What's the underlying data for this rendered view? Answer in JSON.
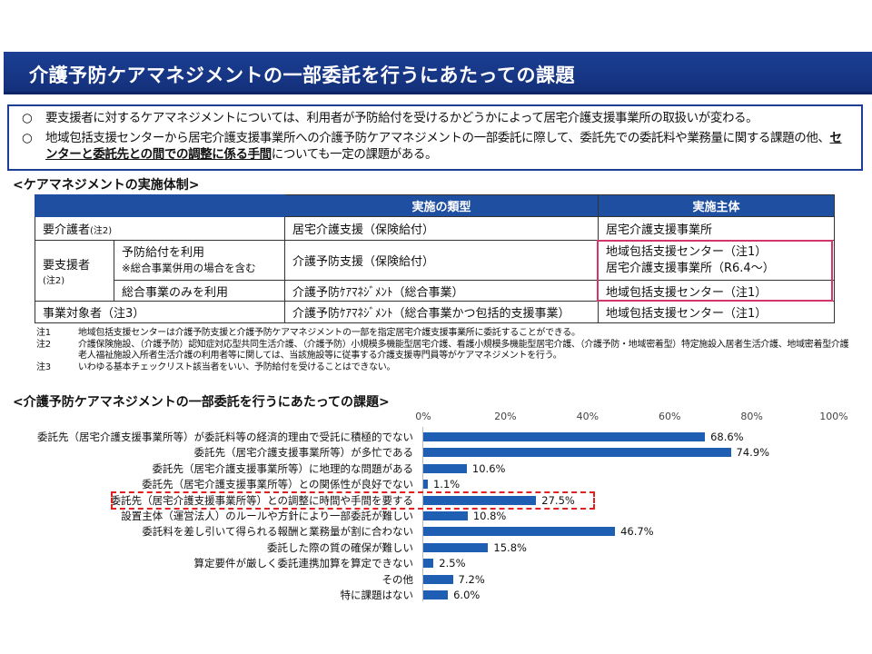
{
  "title": "介護予防ケアマネジメントの一部委託を行うにあたっての課題",
  "summary": {
    "bullet_mark": "○",
    "b1": "要支援者に対するケアマネジメントについては、利用者が予防給付を受けるかどうかによって居宅介護支援事業所の取扱いが変わる。",
    "b2_pre": "地域包括支援センターから居宅介護支援事業所への介護予防ケアマネジメントの一部委託に際して、委託先での委託料や業務量に関する課題の他、",
    "b2_emph": "センターと委託先との間での調整に係る手間",
    "b2_post": "についても一定の課題がある。"
  },
  "table_section": "<ケアマネジメントの実施体制>",
  "table": {
    "headers": [
      "実施の類型",
      "実施主体"
    ],
    "r1": {
      "label": "要介護者",
      "note": "(注2)",
      "type": "居宅介護支援（保険給付）",
      "agent": "居宅介護支援事業所"
    },
    "r2": {
      "label": "要支援者",
      "note": "(注2)",
      "sub1": "予防給付を利用",
      "sub1b": "※総合事業併用の場合を含む",
      "type": "介護予防支援（保険給付）",
      "agent1": "地域包括支援センター（注1）",
      "agent2": "居宅介護支援事業所（R6.4～）"
    },
    "r3": {
      "sub": "総合事業のみを利用",
      "type": "介護予防ｹｱﾏﾈｼﾞﾒﾝﾄ（総合事業）",
      "agent": "地域包括支援センター（注1）"
    },
    "r4": {
      "label": "事業対象者（注3）",
      "type": "介護予防ｹｱﾏﾈｼﾞﾒﾝﾄ（総合事業かつ包括的支援事業）",
      "agent": "地域包括支援センター（注1）"
    }
  },
  "notes": [
    {
      "n": "注1",
      "t": "地域包括支援センターは介護予防支援と介護予防ケアマネジメントの一部を指定居宅介護支援事業所に委託することができる。"
    },
    {
      "n": "注2",
      "t": "介護保険施設、（介護予防）認知症対応型共同生活介護、（介護予防）小規模多機能型居宅介護、看護小規模多機能型居宅介護、（介護予防・地域密着型）特定施設入居者生活介護、地域密着型介護老人福祉施設入所者生活介護の利用者等に関しては、当該施設等に従事する介護支援専門員等がケアマネジメントを行う。"
    },
    {
      "n": "注3",
      "t": "いわゆる基本チェックリスト該当者をいい、予防給付を受けることはできない。"
    }
  ],
  "chart_data": {
    "type": "bar",
    "orientation": "horizontal",
    "title": "<介護予防ケアマネジメントの一部委託を行うにあたっての課題>",
    "xlim": [
      0,
      100
    ],
    "ticks": [
      "0%",
      "20%",
      "40%",
      "60%",
      "80%",
      "100%"
    ],
    "categories": [
      "委託先（居宅介護支援事業所等）が委託料等の経済的理由で受託に積極的でない",
      "委託先（居宅介護支援事業所等）が多忙である",
      "委託先（居宅介護支援事業所等）に地理的な問題がある",
      "委託先（居宅介護支援事業所等）との関係性が良好でない",
      "委託先（居宅介護支援事業所等）との調整に時間や手間を要する",
      "設置主体（運営法人）のルールや方針により一部委託が難しい",
      "委託料を差し引いて得られる報酬と業務量が割に合わない",
      "委託した際の質の確保が難しい",
      "算定要件が厳しく委託連携加算を算定できない",
      "その他",
      "特に課題はない"
    ],
    "values": [
      68.6,
      74.9,
      10.6,
      1.1,
      27.5,
      10.8,
      46.7,
      15.8,
      2.5,
      7.2,
      6.0
    ],
    "labels": [
      "68.6%",
      "74.9%",
      "10.6%",
      "1.1%",
      "27.5%",
      "10.8%",
      "46.7%",
      "15.8%",
      "2.5%",
      "7.2%",
      "6.0%"
    ],
    "highlighted_index": 4,
    "bar_color": "#1f5fb3"
  }
}
